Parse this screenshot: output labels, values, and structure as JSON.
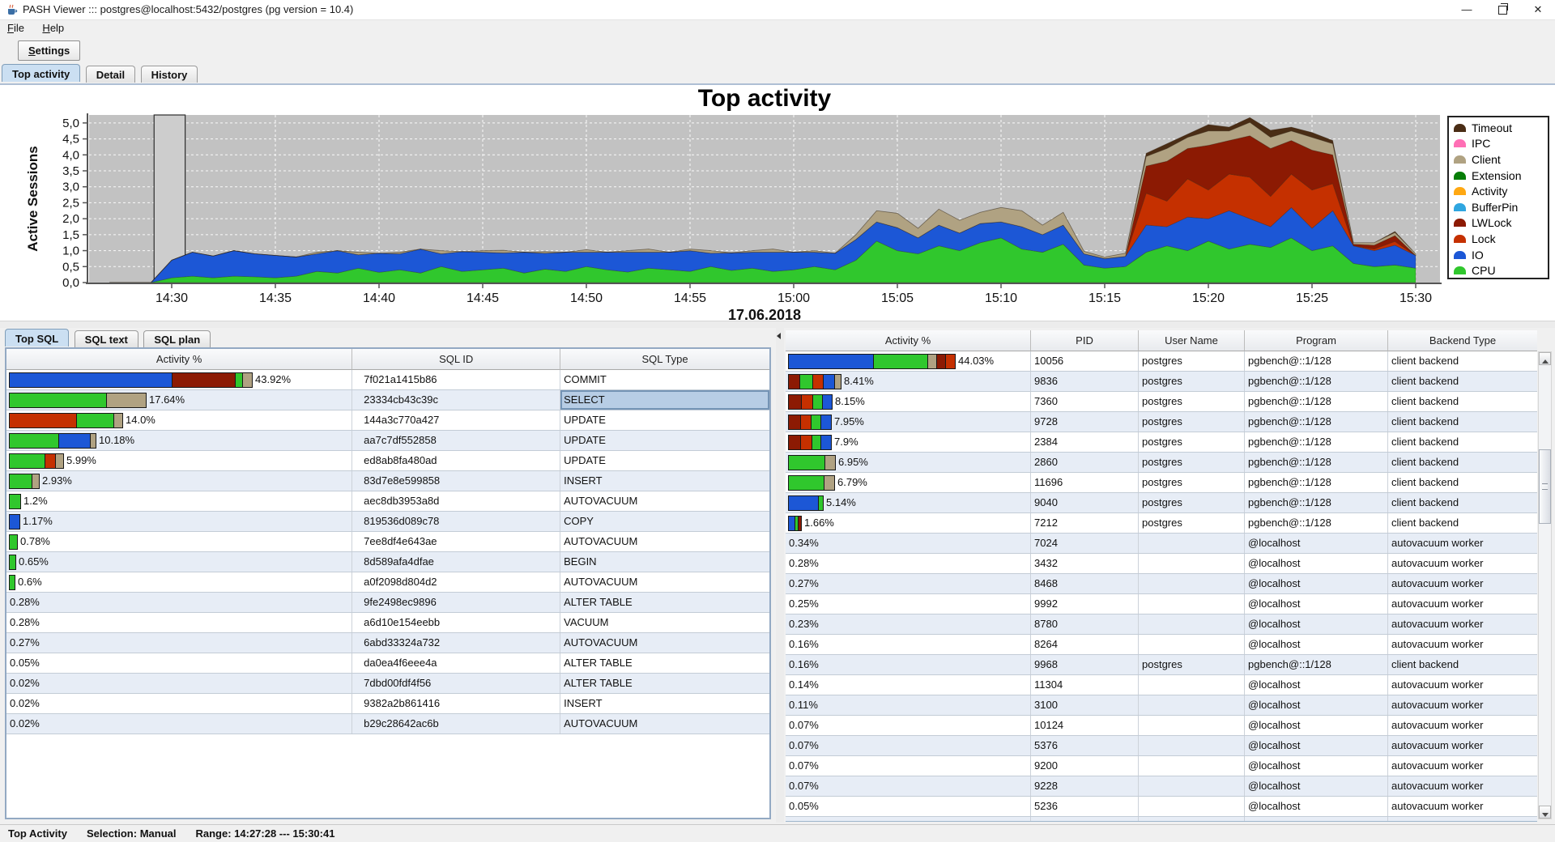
{
  "window": {
    "title": "PASH Viewer ::: postgres@localhost:5432/postgres (pg version = 10.4)",
    "controls": {
      "minimize": "—",
      "close": "✕"
    }
  },
  "menu": {
    "file_label": "File",
    "help_label": "Help"
  },
  "toolbar": {
    "settings_label": "Settings"
  },
  "main_tabs": [
    {
      "label": "Top activity",
      "selected": true
    },
    {
      "label": "Detail",
      "selected": false
    },
    {
      "label": "History",
      "selected": false
    }
  ],
  "wait_colors": {
    "cpu": "#30c72d",
    "io": "#1c57d6",
    "lock": "#c53000",
    "lwlock": "#8c1a03",
    "bufferpin": "#2fa6e0",
    "activity": "#ffa812",
    "extension": "#067d06",
    "client": "#b0a282",
    "ipc": "#ff6fb5",
    "timeout": "#4a2d15"
  },
  "chart_data": {
    "type": "area",
    "title": "Top activity",
    "ylabel": "Active Sessions",
    "date_label": "17.06.2018",
    "ylim": [
      0,
      5.25
    ],
    "ytick_labels": [
      "0,0",
      "0,5",
      "1,0",
      "1,5",
      "2,0",
      "2,5",
      "3,0",
      "3,5",
      "4,0",
      "4,5",
      "5,0"
    ],
    "xticks": [
      "14:30",
      "14:35",
      "14:40",
      "14:45",
      "14:50",
      "14:55",
      "15:00",
      "15:05",
      "15:10",
      "15:15",
      "15:20",
      "15:25",
      "15:30"
    ],
    "x_start": "14:27",
    "x_step_minutes": 1,
    "selection_rect": {
      "from_min": -0.85,
      "to_min": 0.65
    },
    "legend": [
      {
        "label": "Timeout",
        "key": "timeout"
      },
      {
        "label": "IPC",
        "key": "ipc"
      },
      {
        "label": "Client",
        "key": "client"
      },
      {
        "label": "Extension",
        "key": "extension"
      },
      {
        "label": "Activity",
        "key": "activity"
      },
      {
        "label": "BufferPin",
        "key": "bufferpin"
      },
      {
        "label": "LWLock",
        "key": "lwlock"
      },
      {
        "label": "Lock",
        "key": "lock"
      },
      {
        "label": "IO",
        "key": "io"
      },
      {
        "label": "CPU",
        "key": "cpu"
      }
    ],
    "series": [
      {
        "name": "CPU",
        "key": "cpu",
        "values": [
          0,
          0,
          0,
          0.15,
          0.2,
          0.15,
          0.2,
          0.18,
          0.15,
          0.2,
          0.35,
          0.3,
          0.45,
          0.32,
          0.4,
          0.3,
          0.5,
          0.35,
          0.4,
          0.45,
          0.3,
          0.42,
          0.35,
          0.5,
          0.4,
          0.33,
          0.45,
          0.4,
          0.35,
          0.5,
          0.38,
          0.45,
          0.35,
          0.4,
          0.5,
          0.4,
          0.7,
          1.3,
          1.0,
          0.9,
          1.15,
          1.0,
          1.25,
          1.4,
          1.05,
          0.95,
          1.2,
          0.55,
          0.45,
          0.5,
          0.95,
          1.15,
          1.0,
          1.3,
          1.05,
          1.2,
          1.1,
          1.4,
          1.0,
          1.15,
          0.6,
          0.5,
          0.55,
          0.45
        ]
      },
      {
        "name": "IO",
        "key": "io",
        "values": [
          0,
          0,
          0,
          0.55,
          0.75,
          0.68,
          0.8,
          0.72,
          0.7,
          0.6,
          0.55,
          0.7,
          0.42,
          0.6,
          0.5,
          0.75,
          0.4,
          0.62,
          0.55,
          0.48,
          0.65,
          0.5,
          0.6,
          0.45,
          0.55,
          0.62,
          0.5,
          0.55,
          0.65,
          0.42,
          0.55,
          0.5,
          0.6,
          0.55,
          0.45,
          0.52,
          0.65,
          0.6,
          0.72,
          0.5,
          0.65,
          0.55,
          0.6,
          0.5,
          0.7,
          0.55,
          0.6,
          0.35,
          0.3,
          0.32,
          0.85,
          0.6,
          1.05,
          0.7,
          1.2,
          0.8,
          0.65,
          0.95,
          0.7,
          1.1,
          0.55,
          0.5,
          0.62,
          0.4
        ]
      },
      {
        "name": "Lock",
        "key": "lock",
        "values": [
          0,
          0,
          0,
          0,
          0,
          0,
          0,
          0,
          0,
          0,
          0,
          0,
          0,
          0,
          0,
          0,
          0,
          0,
          0,
          0,
          0,
          0,
          0,
          0,
          0,
          0,
          0,
          0,
          0,
          0,
          0,
          0,
          0,
          0,
          0,
          0,
          0,
          0,
          0,
          0,
          0,
          0,
          0,
          0,
          0,
          0,
          0,
          0,
          0,
          0,
          1.0,
          0.8,
          1.2,
          0.9,
          1.15,
          1.3,
          0.95,
          1.05,
          1.2,
          0.85,
          0,
          0.05,
          0.12,
          0
        ]
      },
      {
        "name": "LWLock",
        "key": "lwlock",
        "values": [
          0,
          0,
          0,
          0,
          0,
          0,
          0,
          0,
          0,
          0,
          0,
          0,
          0,
          0,
          0,
          0,
          0,
          0,
          0,
          0,
          0,
          0,
          0,
          0,
          0,
          0,
          0,
          0,
          0,
          0,
          0,
          0,
          0,
          0,
          0,
          0,
          0,
          0,
          0,
          0,
          0,
          0,
          0,
          0,
          0,
          0,
          0,
          0,
          0,
          0,
          0.85,
          1.25,
          0.95,
          1.4,
          1.05,
          1.3,
          1.5,
          1.05,
          1.25,
          0.9,
          0.05,
          0.12,
          0.18,
          0
        ]
      },
      {
        "name": "Client",
        "key": "client",
        "values": [
          0,
          0,
          0,
          0,
          0,
          0,
          0,
          0,
          0,
          0,
          0.05,
          0,
          0.08,
          0,
          0.05,
          0,
          0.1,
          0,
          0.05,
          0.08,
          0,
          0.05,
          0,
          0.08,
          0,
          0.05,
          0.1,
          0,
          0.05,
          0.08,
          0,
          0.05,
          0.1,
          0,
          0.05,
          0,
          0.15,
          0.35,
          0.45,
          0.3,
          0.5,
          0.4,
          0.35,
          0.45,
          0.5,
          0.3,
          0.4,
          0.08,
          0.05,
          0.1,
          0.3,
          0.4,
          0.35,
          0.45,
          0.3,
          0.42,
          0.35,
          0.3,
          0.4,
          0.35,
          0.05,
          0.08,
          0.1,
          0.05
        ]
      },
      {
        "name": "Timeout",
        "key": "timeout",
        "values": [
          0,
          0,
          0,
          0,
          0,
          0,
          0,
          0,
          0,
          0,
          0,
          0,
          0,
          0,
          0,
          0,
          0,
          0,
          0,
          0,
          0,
          0,
          0,
          0,
          0,
          0,
          0,
          0,
          0,
          0,
          0,
          0,
          0,
          0,
          0,
          0,
          0,
          0,
          0,
          0,
          0,
          0,
          0,
          0,
          0,
          0,
          0,
          0,
          0,
          0,
          0.1,
          0.15,
          0.1,
          0.2,
          0.12,
          0.15,
          0.22,
          0.12,
          0.15,
          0.1,
          0,
          0,
          0.03,
          0
        ]
      }
    ]
  },
  "bottom": {
    "sql_tabs": [
      {
        "label": "Top SQL",
        "selected": true
      },
      {
        "label": "SQL text",
        "selected": false
      },
      {
        "label": "SQL plan",
        "selected": false
      }
    ],
    "sql_table": {
      "columns": [
        "Activity %",
        "SQL ID",
        "SQL Type"
      ],
      "rows": [
        {
          "pct": "43.92%",
          "bar": [
            [
              "io",
              200
            ],
            [
              "lwlock",
              77
            ],
            [
              "cpu",
              8
            ],
            [
              "client",
              11
            ]
          ],
          "sql_id": "7f021a1415b86",
          "sql_type": "COMMIT"
        },
        {
          "pct": "17.64%",
          "bar": [
            [
              "cpu",
              119
            ],
            [
              "client",
              48
            ]
          ],
          "sql_id": "23334cb43c39c",
          "sql_type": "SELECT",
          "selected": true
        },
        {
          "pct": "14.0%",
          "bar": [
            [
              "lock",
              82
            ],
            [
              "cpu",
              45
            ],
            [
              "client",
              10
            ]
          ],
          "sql_id": "144a3c770a427",
          "sql_type": "UPDATE"
        },
        {
          "pct": "10.18%",
          "bar": [
            [
              "cpu",
              60
            ],
            [
              "io",
              38
            ],
            [
              "client",
              6
            ]
          ],
          "sql_id": "aa7c7df552858",
          "sql_type": "UPDATE"
        },
        {
          "pct": "5.99%",
          "bar": [
            [
              "cpu",
              43
            ],
            [
              "lock",
              12
            ],
            [
              "client",
              9
            ]
          ],
          "sql_id": "ed8ab8fa480ad",
          "sql_type": "UPDATE"
        },
        {
          "pct": "2.93%",
          "bar": [
            [
              "cpu",
              27
            ],
            [
              "client",
              8
            ]
          ],
          "sql_id": "83d7e8e599858",
          "sql_type": "INSERT"
        },
        {
          "pct": "1.2%",
          "bar": [
            [
              "cpu",
              13
            ]
          ],
          "sql_id": "aec8db3953a8d",
          "sql_type": "AUTOVACUUM"
        },
        {
          "pct": "1.17%",
          "bar": [
            [
              "io",
              12
            ]
          ],
          "sql_id": "819536d089c78",
          "sql_type": "COPY"
        },
        {
          "pct": "0.78%",
          "bar": [
            [
              "cpu",
              9
            ]
          ],
          "sql_id": "7ee8df4e643ae",
          "sql_type": "AUTOVACUUM"
        },
        {
          "pct": "0.65%",
          "bar": [
            [
              "cpu",
              7
            ]
          ],
          "sql_id": "8d589afa4dfae",
          "sql_type": "BEGIN"
        },
        {
          "pct": "0.6%",
          "bar": [
            [
              "cpu",
              6
            ]
          ],
          "sql_id": "a0f2098d804d2",
          "sql_type": "AUTOVACUUM"
        },
        {
          "pct": "0.28%",
          "bar": [],
          "sql_id": "9fe2498ec9896",
          "sql_type": "ALTER TABLE"
        },
        {
          "pct": "0.28%",
          "bar": [],
          "sql_id": "a6d10e154eebb",
          "sql_type": "VACUUM"
        },
        {
          "pct": "0.27%",
          "bar": [],
          "sql_id": "6abd33324a732",
          "sql_type": "AUTOVACUUM"
        },
        {
          "pct": "0.05%",
          "bar": [],
          "sql_id": "da0ea4f6eee4a",
          "sql_type": "ALTER TABLE"
        },
        {
          "pct": "0.02%",
          "bar": [],
          "sql_id": "7dbd00fdf4f56",
          "sql_type": "ALTER TABLE"
        },
        {
          "pct": "0.02%",
          "bar": [],
          "sql_id": "9382a2b861416",
          "sql_type": "INSERT"
        },
        {
          "pct": "0.02%",
          "bar": [],
          "sql_id": "b29c28642ac6b",
          "sql_type": "AUTOVACUUM"
        }
      ]
    },
    "session_table": {
      "columns": [
        "Activity %",
        "PID",
        "User Name",
        "Program",
        "Backend Type"
      ],
      "rows": [
        {
          "pct": "44.03%",
          "bar": [
            [
              "io",
              104
            ],
            [
              "cpu",
              66
            ],
            [
              "client",
              10
            ],
            [
              "lwlock",
              10
            ],
            [
              "lock",
              11
            ]
          ],
          "pid": "10056",
          "user": "postgres",
          "program": "pgbench@::1/128",
          "backend": "client backend"
        },
        {
          "pct": "8.41%",
          "bar": [
            [
              "lwlock",
              13
            ],
            [
              "cpu",
              15
            ],
            [
              "lock",
              12
            ],
            [
              "io",
              13
            ],
            [
              "client",
              7
            ]
          ],
          "pid": "9836",
          "user": "postgres",
          "program": "pgbench@::1/128",
          "backend": "client backend"
        },
        {
          "pct": "8.15%",
          "bar": [
            [
              "lwlock",
              15
            ],
            [
              "lock",
              13
            ],
            [
              "cpu",
              11
            ],
            [
              "io",
              11
            ]
          ],
          "pid": "7360",
          "user": "postgres",
          "program": "pgbench@::1/128",
          "backend": "client backend"
        },
        {
          "pct": "7.95%",
          "bar": [
            [
              "lwlock",
              14
            ],
            [
              "lock",
              12
            ],
            [
              "cpu",
              11
            ],
            [
              "io",
              12
            ]
          ],
          "pid": "9728",
          "user": "postgres",
          "program": "pgbench@::1/128",
          "backend": "client backend"
        },
        {
          "pct": "7.9%",
          "bar": [
            [
              "lwlock",
              14
            ],
            [
              "lock",
              13
            ],
            [
              "cpu",
              10
            ],
            [
              "io",
              12
            ]
          ],
          "pid": "2384",
          "user": "postgres",
          "program": "pgbench@::1/128",
          "backend": "client backend"
        },
        {
          "pct": "6.95%",
          "bar": [
            [
              "cpu",
              44
            ],
            [
              "client",
              12
            ]
          ],
          "pid": "2860",
          "user": "postgres",
          "program": "pgbench@::1/128",
          "backend": "client backend"
        },
        {
          "pct": "6.79%",
          "bar": [
            [
              "cpu",
              43
            ],
            [
              "client",
              12
            ]
          ],
          "pid": "11696",
          "user": "postgres",
          "program": "pgbench@::1/128",
          "backend": "client backend"
        },
        {
          "pct": "5.14%",
          "bar": [
            [
              "io",
              36
            ],
            [
              "cpu",
              5
            ]
          ],
          "pid": "9040",
          "user": "postgres",
          "program": "pgbench@::1/128",
          "backend": "client backend"
        },
        {
          "pct": "1.66%",
          "bar": [
            [
              "io",
              7
            ],
            [
              "cpu",
              3
            ],
            [
              "lwlock",
              3
            ]
          ],
          "pid": "7212",
          "user": "postgres",
          "program": "pgbench@::1/128",
          "backend": "client backend"
        },
        {
          "pct": "0.34%",
          "bar": [],
          "pid": "7024",
          "user": "",
          "program": "@localhost",
          "backend": "autovacuum worker"
        },
        {
          "pct": "0.28%",
          "bar": [],
          "pid": "3432",
          "user": "",
          "program": "@localhost",
          "backend": "autovacuum worker"
        },
        {
          "pct": "0.27%",
          "bar": [],
          "pid": "8468",
          "user": "",
          "program": "@localhost",
          "backend": "autovacuum worker"
        },
        {
          "pct": "0.25%",
          "bar": [],
          "pid": "9992",
          "user": "",
          "program": "@localhost",
          "backend": "autovacuum worker"
        },
        {
          "pct": "0.23%",
          "bar": [],
          "pid": "8780",
          "user": "",
          "program": "@localhost",
          "backend": "autovacuum worker"
        },
        {
          "pct": "0.16%",
          "bar": [],
          "pid": "8264",
          "user": "",
          "program": "@localhost",
          "backend": "autovacuum worker"
        },
        {
          "pct": "0.16%",
          "bar": [],
          "pid": "9968",
          "user": "postgres",
          "program": "pgbench@::1/128",
          "backend": "client backend"
        },
        {
          "pct": "0.14%",
          "bar": [],
          "pid": "11304",
          "user": "",
          "program": "@localhost",
          "backend": "autovacuum worker"
        },
        {
          "pct": "0.11%",
          "bar": [],
          "pid": "3100",
          "user": "",
          "program": "@localhost",
          "backend": "autovacuum worker"
        },
        {
          "pct": "0.07%",
          "bar": [],
          "pid": "10124",
          "user": "",
          "program": "@localhost",
          "backend": "autovacuum worker"
        },
        {
          "pct": "0.07%",
          "bar": [],
          "pid": "5376",
          "user": "",
          "program": "@localhost",
          "backend": "autovacuum worker"
        },
        {
          "pct": "0.07%",
          "bar": [],
          "pid": "9200",
          "user": "",
          "program": "@localhost",
          "backend": "autovacuum worker"
        },
        {
          "pct": "0.07%",
          "bar": [],
          "pid": "9228",
          "user": "",
          "program": "@localhost",
          "backend": "autovacuum worker"
        },
        {
          "pct": "0.05%",
          "bar": [],
          "pid": "5236",
          "user": "",
          "program": "@localhost",
          "backend": "autovacuum worker"
        },
        {
          "pct": "",
          "bar": [],
          "pid": "",
          "user": "",
          "program": "",
          "backend": ""
        }
      ]
    }
  },
  "status_bar": {
    "view": "Top Activity",
    "selection": "Selection: Manual",
    "range": "Range: 14:27:28 --- 15:30:41"
  }
}
